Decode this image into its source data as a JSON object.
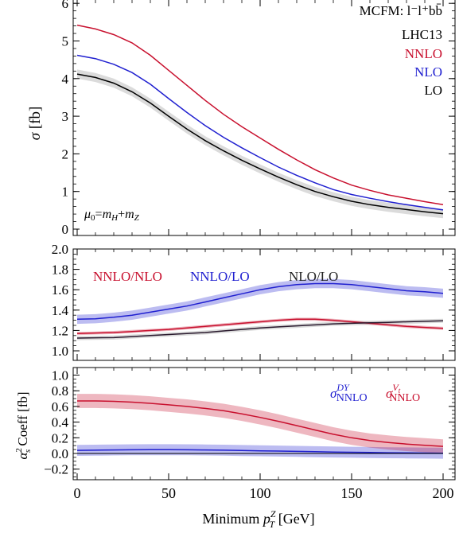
{
  "chart_data": [
    {
      "type": "line",
      "id": "top",
      "ylabel": "σ [fb]",
      "ylim": [
        -0.1,
        6.3
      ],
      "yticks": [
        "0",
        "1",
        "2",
        "3",
        "4",
        "5",
        "6"
      ],
      "legend": [
        "MCFM: l⁻l⁺bb̄",
        "LHC13",
        "NNLO",
        "NLO",
        "LO"
      ],
      "annotation": "μ₀=m_H+m_Z",
      "x": [
        0,
        10,
        20,
        30,
        40,
        50,
        60,
        70,
        80,
        90,
        100,
        110,
        120,
        130,
        140,
        150,
        160,
        170,
        180,
        190,
        200
      ],
      "series": [
        {
          "name": "NNLO",
          "color": "#c8102e",
          "values": [
            5.42,
            5.32,
            5.17,
            4.95,
            4.62,
            4.22,
            3.82,
            3.42,
            3.05,
            2.72,
            2.42,
            2.12,
            1.84,
            1.58,
            1.36,
            1.17,
            1.03,
            0.91,
            0.82,
            0.73,
            0.65
          ]
        },
        {
          "name": "NLO",
          "color": "#2020d0",
          "values": [
            4.62,
            4.53,
            4.38,
            4.16,
            3.85,
            3.47,
            3.1,
            2.75,
            2.44,
            2.16,
            1.9,
            1.65,
            1.43,
            1.23,
            1.05,
            0.92,
            0.82,
            0.73,
            0.65,
            0.58,
            0.51
          ]
        },
        {
          "name": "LO",
          "color": "#000000",
          "band": 0.12,
          "values": [
            4.12,
            4.03,
            3.88,
            3.65,
            3.35,
            3.0,
            2.66,
            2.35,
            2.08,
            1.83,
            1.6,
            1.38,
            1.18,
            1.0,
            0.86,
            0.74,
            0.65,
            0.58,
            0.52,
            0.46,
            0.41
          ]
        }
      ]
    },
    {
      "type": "line",
      "id": "ratio",
      "ylim": [
        0.95,
        2.0
      ],
      "yticks": [
        "1.0",
        "1.2",
        "1.4",
        "1.6",
        "1.8",
        "2.0"
      ],
      "x": [
        0,
        10,
        20,
        30,
        40,
        50,
        60,
        70,
        80,
        90,
        100,
        110,
        120,
        130,
        140,
        150,
        160,
        170,
        180,
        190,
        200
      ],
      "series": [
        {
          "name": "NNLO/NLO",
          "color": "#c8102e",
          "band": 0.015,
          "values": [
            1.17,
            1.175,
            1.18,
            1.19,
            1.2,
            1.21,
            1.225,
            1.24,
            1.255,
            1.27,
            1.285,
            1.3,
            1.31,
            1.31,
            1.3,
            1.285,
            1.27,
            1.255,
            1.24,
            1.23,
            1.22
          ]
        },
        {
          "name": "NNLO/LO",
          "color": "#2020d0",
          "band": 0.045,
          "values": [
            1.31,
            1.315,
            1.33,
            1.35,
            1.38,
            1.41,
            1.44,
            1.48,
            1.52,
            1.56,
            1.6,
            1.63,
            1.65,
            1.66,
            1.66,
            1.65,
            1.63,
            1.61,
            1.59,
            1.58,
            1.565
          ]
        },
        {
          "name": "NLO/LO",
          "color": "#2a1a2e",
          "band": 0.02,
          "values": [
            1.125,
            1.128,
            1.13,
            1.14,
            1.15,
            1.16,
            1.17,
            1.18,
            1.195,
            1.21,
            1.225,
            1.235,
            1.245,
            1.255,
            1.265,
            1.27,
            1.275,
            1.28,
            1.285,
            1.29,
            1.295
          ]
        }
      ]
    },
    {
      "type": "line",
      "id": "coeff",
      "ylabel": "α_s² Coeff [fb]",
      "xlabel": "Minimum p_T^Z [GeV]",
      "ylim": [
        -0.3,
        1.03
      ],
      "yticks": [
        "−0.2",
        "0.0",
        "0.2",
        "0.4",
        "0.6",
        "0.8",
        "1.0"
      ],
      "xticks": [
        "0",
        "50",
        "100",
        "150",
        "200"
      ],
      "xlim": [
        0,
        200
      ],
      "x": [
        0,
        10,
        20,
        30,
        40,
        50,
        60,
        70,
        80,
        90,
        100,
        110,
        120,
        130,
        140,
        150,
        160,
        170,
        180,
        190,
        200
      ],
      "series": [
        {
          "name": "σ^DY_NNLO",
          "color": "#2020d0",
          "band": 0.07,
          "values": [
            0.04,
            0.042,
            0.045,
            0.047,
            0.048,
            0.048,
            0.047,
            0.045,
            0.042,
            0.038,
            0.034,
            0.03,
            0.026,
            0.022,
            0.018,
            0.015,
            0.012,
            0.009,
            0.007,
            0.005,
            0.003
          ]
        },
        {
          "name": "σ^Vt_NNLO",
          "color": "#c8102e",
          "band": 0.09,
          "values": [
            0.67,
            0.67,
            0.665,
            0.655,
            0.64,
            0.62,
            0.6,
            0.575,
            0.545,
            0.505,
            0.46,
            0.41,
            0.355,
            0.3,
            0.245,
            0.2,
            0.165,
            0.14,
            0.12,
            0.105,
            0.09
          ]
        },
        {
          "name": "zero",
          "color": "#000000",
          "values": [
            0,
            0,
            0,
            0,
            0,
            0,
            0,
            0,
            0,
            0,
            0,
            0,
            0,
            0,
            0,
            0,
            0,
            0,
            0,
            0,
            0
          ]
        }
      ]
    }
  ],
  "labels": {
    "top_legend_1": "MCFM: l⁻l⁺bb̄",
    "top_legend_2": "LHC13",
    "top_nnlo": "NNLO",
    "top_nlo": "NLO",
    "top_lo": "LO",
    "top_ylabel": "σ [fb]",
    "ratio_nnlo_nlo": "NNLO/NLO",
    "ratio_nnlo_lo": "NNLO/LO",
    "ratio_nlo_lo": "NLO/LO",
    "coeff_ylabel": "α²s Coeff [fb]",
    "xlabel": "Minimum p_T^Z [GeV]"
  }
}
